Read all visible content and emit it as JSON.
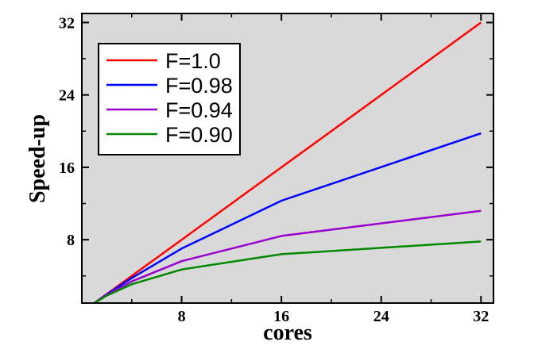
{
  "chart_data": {
    "type": "line",
    "title": "",
    "xlabel": "cores",
    "ylabel": "Speed-up",
    "xlim": [
      0,
      33
    ],
    "ylim": [
      1,
      33
    ],
    "x_ticks": [
      8,
      16,
      24,
      32
    ],
    "y_ticks": [
      8,
      16,
      24,
      32
    ],
    "grid": false,
    "background": "#d9d9d9",
    "legend_position": "top-left",
    "series": [
      {
        "name": "F=1.0",
        "color": "#ff0000",
        "x": [
          1,
          2,
          4,
          8,
          16,
          32
        ],
        "y": [
          1,
          2,
          4,
          8,
          16,
          32
        ]
      },
      {
        "name": "F=0.98",
        "color": "#0000ff",
        "x": [
          1,
          2,
          4,
          8,
          16,
          32
        ],
        "y": [
          1,
          1.96,
          3.77,
          7.02,
          12.31,
          19.75
        ]
      },
      {
        "name": "F=0.94",
        "color": "#9900cc",
        "x": [
          1,
          2,
          4,
          8,
          16,
          32
        ],
        "y": [
          1,
          1.89,
          3.39,
          5.63,
          8.42,
          11.19
        ]
      },
      {
        "name": "F=0.90",
        "color": "#008800",
        "x": [
          1,
          2,
          4,
          8,
          16,
          32
        ],
        "y": [
          1,
          1.82,
          3.08,
          4.71,
          6.4,
          7.8
        ]
      }
    ]
  }
}
